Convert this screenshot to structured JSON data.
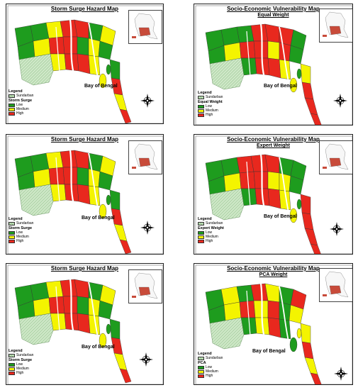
{
  "colors": {
    "low": "#1e9c1e",
    "medium": "#f4f400",
    "high": "#e8281e",
    "sundarban": "#cfe8c8",
    "sundarban_stripe": "#8fbf88",
    "river": "#ffffff"
  },
  "panels": [
    {
      "title": "Storm Surge Hazard Map",
      "subtitle": "",
      "bay": "Bay of Bengal",
      "legend": {
        "heading": "Legend",
        "sundarban": "Sundarban",
        "category": "Storm Surge",
        "items": [
          "Low",
          "Medium",
          "High"
        ]
      }
    },
    {
      "title": "Socio-Economic Vulnerability Map",
      "subtitle": "Equal Weight",
      "bay": "Bay of Bengal",
      "legend": {
        "heading": "Legend",
        "sundarban": "Sundarban",
        "category": "Equal Weight",
        "items": [
          "Low",
          "Medium",
          "High"
        ]
      }
    },
    {
      "title": "Storm Surge Hazard Map",
      "subtitle": "",
      "bay": "Bay of Bengal",
      "legend": {
        "heading": "Legend",
        "sundarban": "Sundarban",
        "category": "Storm Surge",
        "items": [
          "Low",
          "Medium",
          "High"
        ]
      }
    },
    {
      "title": "Socio-Economic Vulnerability Map",
      "subtitle": "Expert Weight",
      "bay": "Bay of Bengal",
      "legend": {
        "heading": "Legend",
        "sundarban": "Sundarban",
        "category": "Expert Weight",
        "items": [
          "Low",
          "Medium",
          "High"
        ]
      }
    },
    {
      "title": "Storm Surge Hazard Map",
      "subtitle": "",
      "bay": "Bay of Bengal",
      "legend": {
        "heading": "Legend",
        "sundarban": "Sundarban",
        "category": "Storm Surge",
        "items": [
          "Low",
          "Medium",
          "High"
        ]
      }
    },
    {
      "title": "Socio-Economic Vulnerability Map",
      "subtitle": "PCA Weight",
      "bay": "Bay of Bengal",
      "legend": {
        "heading": "Legend",
        "sundarban": "Sundarban",
        "category": "PCA",
        "items": [
          "Low",
          "Medium",
          "High"
        ]
      }
    }
  ]
}
